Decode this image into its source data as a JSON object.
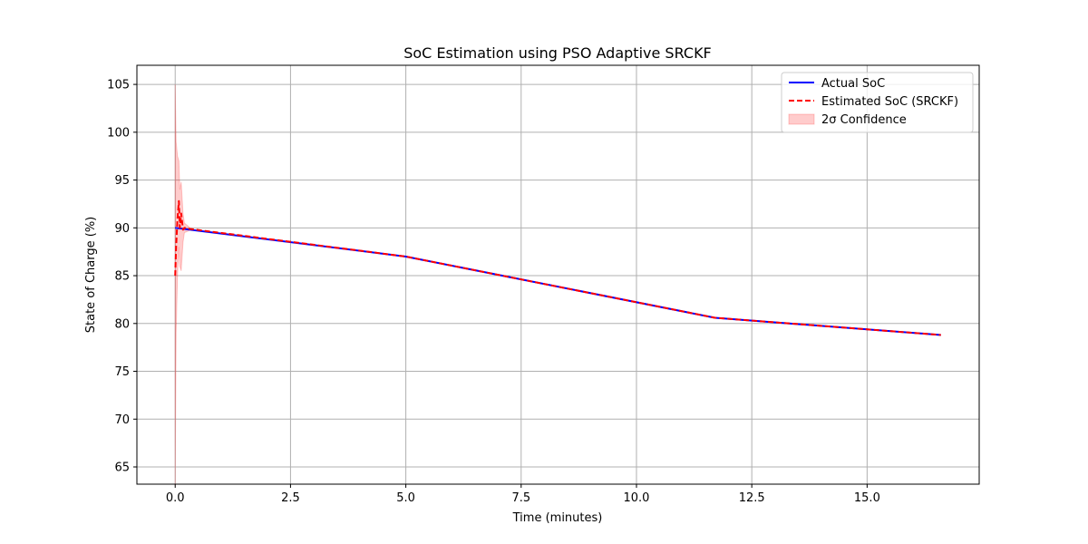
{
  "chart_data": {
    "type": "line",
    "title": "SoC Estimation using PSO Adaptive SRCKF",
    "xlabel": "Time (minutes)",
    "ylabel": "State of Charge (%)",
    "xlim": [
      -0.83,
      17.43
    ],
    "ylim": [
      63.2,
      107.0
    ],
    "xticks": [
      0.0,
      2.5,
      5.0,
      7.5,
      10.0,
      12.5,
      15.0
    ],
    "xtick_labels": [
      "0.0",
      "2.5",
      "5.0",
      "7.5",
      "10.0",
      "12.5",
      "15.0"
    ],
    "yticks": [
      65,
      70,
      75,
      80,
      85,
      90,
      95,
      100,
      105
    ],
    "ytick_labels": [
      "65",
      "70",
      "75",
      "80",
      "85",
      "90",
      "95",
      "100",
      "105"
    ],
    "grid": true,
    "legend_position": "top-right",
    "series": [
      {
        "name": "Actual SoC",
        "color": "#0000ff",
        "style": "solid",
        "x": [
          0.0,
          5.0,
          11.7,
          16.6
        ],
        "y": [
          90.0,
          87.0,
          80.6,
          78.8
        ]
      },
      {
        "name": "Estimated SoC (SRCKF)",
        "color": "#ff0000",
        "style": "dashed",
        "x": [
          0.0,
          0.02,
          0.05,
          0.08,
          0.1,
          0.13,
          0.17,
          0.2,
          0.3,
          5.0,
          11.7,
          16.6
        ],
        "y": [
          85.0,
          88.0,
          91.0,
          92.8,
          90.0,
          91.5,
          89.8,
          90.0,
          89.9,
          87.0,
          80.6,
          78.8
        ]
      }
    ],
    "band": {
      "name": "2σ Confidence",
      "color": "#ff0000",
      "opacity": 0.2,
      "x": [
        0.0,
        0.02,
        0.05,
        0.08,
        0.1,
        0.13,
        0.17,
        0.2,
        0.3
      ],
      "upper": [
        105.0,
        99.0,
        97.5,
        97.0,
        94.0,
        94.8,
        91.5,
        90.5,
        90.1
      ],
      "lower": [
        63.0,
        79.0,
        85.0,
        88.0,
        86.0,
        85.5,
        88.5,
        89.5,
        89.7
      ]
    }
  }
}
